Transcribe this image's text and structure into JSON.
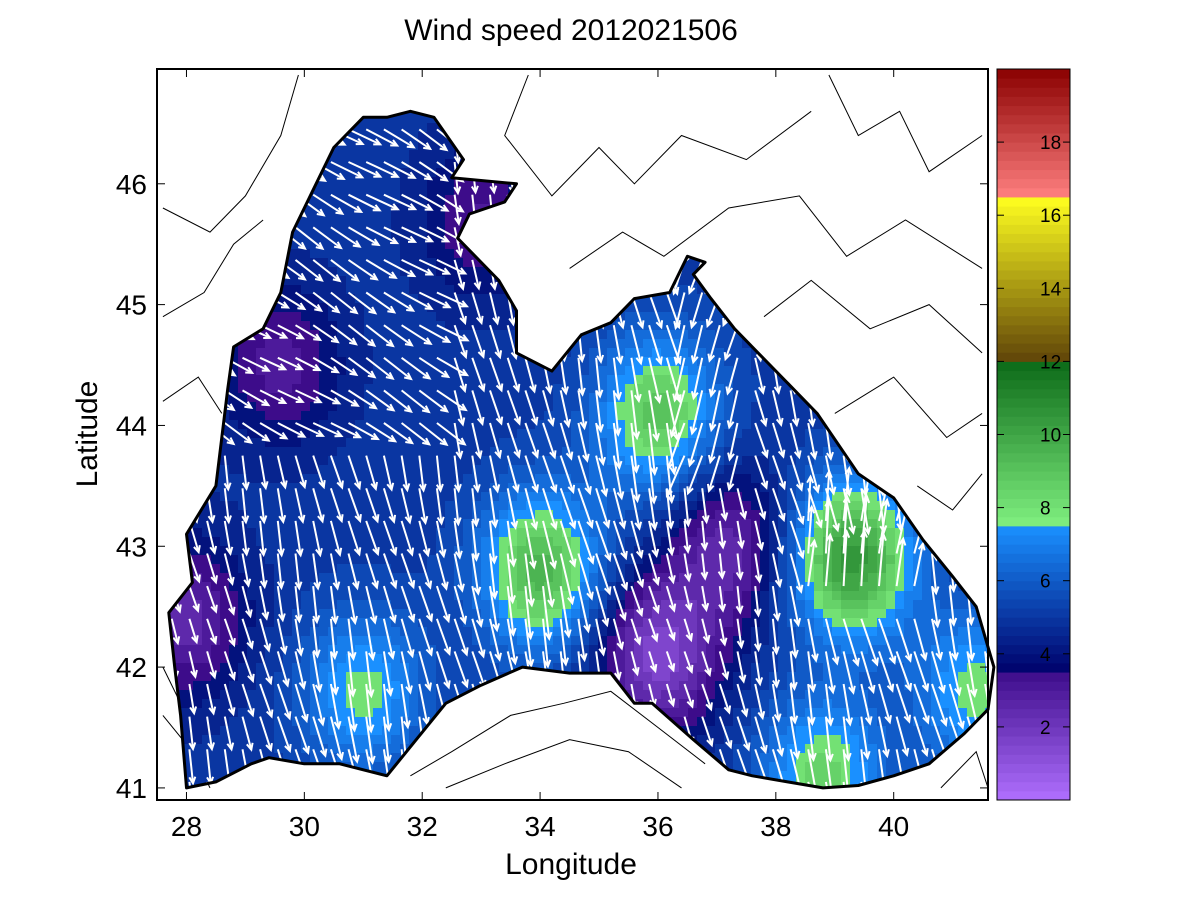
{
  "chart_data": {
    "type": "heatmap",
    "title": "Wind speed 2012021506",
    "xlabel": "Longitude",
    "ylabel": "Latitude",
    "xlim": [
      27.5,
      41.6
    ],
    "ylim": [
      40.9,
      46.95
    ],
    "x_ticks": [
      28,
      30,
      32,
      34,
      36,
      38,
      40
    ],
    "y_ticks": [
      41,
      42,
      43,
      44,
      45,
      46
    ],
    "colorbar": {
      "range": [
        0,
        20
      ],
      "ticks": [
        2,
        4,
        6,
        8,
        10,
        12,
        14,
        16,
        18
      ],
      "bands": [
        {
          "from": 0,
          "to": 3.5,
          "colors": [
            "#b070ff",
            "#3d0c8a"
          ]
        },
        {
          "from": 3.5,
          "to": 7.5,
          "colors": [
            "#00006a",
            "#1a90ff"
          ]
        },
        {
          "from": 7.5,
          "to": 12,
          "colors": [
            "#80f080",
            "#0c6a18"
          ]
        },
        {
          "from": 12,
          "to": 16.5,
          "colors": [
            "#604408",
            "#ffff20"
          ]
        },
        {
          "from": 16.5,
          "to": 20,
          "colors": [
            "#ff8080",
            "#8a0000"
          ]
        }
      ]
    },
    "regions": [
      {
        "name": "background",
        "value": 5.0
      },
      {
        "name": "northwest-low",
        "value": 3.0,
        "center": [
          29.6,
          44.5
        ]
      },
      {
        "name": "western-edge-low",
        "value": 2.5,
        "center": [
          28.0,
          42.4
        ]
      },
      {
        "name": "crimea-south-low",
        "value": 3.2,
        "center": [
          33.0,
          45.7
        ]
      },
      {
        "name": "central-high",
        "value": 9.5,
        "center": [
          34.0,
          42.8
        ]
      },
      {
        "name": "green-band-north",
        "value": 9.0,
        "center": [
          36.0,
          44.1
        ]
      },
      {
        "name": "southwest-band",
        "value": 8.0,
        "center": [
          31.0,
          41.8
        ]
      },
      {
        "name": "east-high",
        "value": 10.5,
        "center": [
          39.3,
          42.9
        ]
      },
      {
        "name": "center-east-low",
        "value": 2.5,
        "center": [
          37.2,
          43.0
        ]
      },
      {
        "name": "south-central-low",
        "value": 1.5,
        "center": [
          36.0,
          42.1
        ]
      },
      {
        "name": "southeast-band",
        "value": 8.5,
        "center": [
          38.8,
          41.1
        ]
      },
      {
        "name": "far-east-band",
        "value": 8.0,
        "center": [
          41.4,
          41.8
        ]
      }
    ]
  },
  "colors": {
    "vector": "#ffffff",
    "coastline": "#000000",
    "contour_land": "#000000"
  }
}
